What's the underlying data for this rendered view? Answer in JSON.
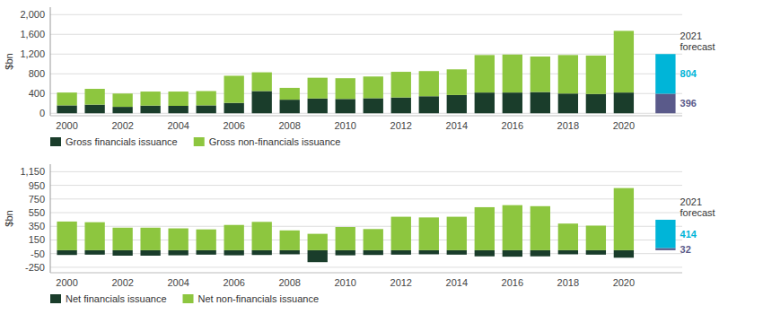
{
  "chart_data": [
    {
      "type": "bar",
      "stacked": true,
      "grid": true,
      "legend": "bottom",
      "ylabel": "$bn",
      "categories": [
        "2000",
        null,
        "2002",
        null,
        "2004",
        null,
        "2006",
        null,
        "2008",
        null,
        "2010",
        null,
        "2012",
        null,
        "2014",
        null,
        "2016",
        null,
        "2018",
        null,
        "2020",
        null
      ],
      "series": [
        {
          "name": "Gross financials issuance",
          "color": "#1a3d2b",
          "values": [
            160,
            175,
            130,
            155,
            150,
            160,
            210,
            450,
            275,
            300,
            290,
            305,
            320,
            345,
            370,
            420,
            420,
            430,
            400,
            390,
            420,
            null
          ]
        },
        {
          "name": "Gross non-financials issuance",
          "color": "#8dc63f",
          "values": [
            260,
            320,
            270,
            285,
            290,
            290,
            550,
            380,
            240,
            420,
            420,
            440,
            520,
            510,
            520,
            760,
            770,
            720,
            780,
            780,
            1250,
            null
          ]
        },
        {
          "color": "#5a5a8a",
          "data_labels": true,
          "values": [
            null,
            null,
            null,
            null,
            null,
            null,
            null,
            null,
            null,
            null,
            null,
            null,
            null,
            null,
            null,
            null,
            null,
            null,
            null,
            null,
            null,
            396
          ]
        },
        {
          "color": "#00b5d8",
          "data_labels": true,
          "values": [
            null,
            null,
            null,
            null,
            null,
            null,
            null,
            null,
            null,
            null,
            null,
            null,
            null,
            null,
            null,
            null,
            null,
            null,
            null,
            null,
            null,
            804
          ]
        }
      ],
      "ylim": [
        -50,
        2150
      ],
      "yticks": [
        0,
        400,
        800,
        {
          "value": 1200,
          "label": "1,200"
        },
        {
          "value": 1600,
          "label": "1,600"
        },
        {
          "value": 2000,
          "label": "2,000"
        }
      ],
      "annotations": [
        "2021",
        "forecast"
      ]
    },
    {
      "type": "bar",
      "stacked": true,
      "grid": true,
      "legend": "bottom",
      "ylabel": "$bn",
      "categories": [
        "2000",
        null,
        "2002",
        null,
        "2004",
        null,
        "2006",
        null,
        "2008",
        null,
        "2010",
        null,
        "2012",
        null,
        "2014",
        null,
        "2016",
        null,
        "2018",
        null,
        "2020",
        null
      ],
      "series": [
        {
          "name": "Net financials issuance",
          "color": "#1a3d2b",
          "values": [
            -70,
            -65,
            -80,
            -80,
            -75,
            -65,
            -75,
            -70,
            -60,
            -175,
            -75,
            -70,
            -65,
            -60,
            -65,
            -90,
            -95,
            -90,
            -60,
            -65,
            -110,
            null
          ]
        },
        {
          "name": "Net non-financials issuance",
          "color": "#8dc63f",
          "values": [
            420,
            410,
            330,
            330,
            320,
            305,
            370,
            415,
            290,
            240,
            340,
            310,
            490,
            480,
            490,
            630,
            660,
            645,
            390,
            360,
            910,
            null
          ]
        },
        {
          "color": "#5a5a8a",
          "data_labels": true,
          "values": [
            null,
            null,
            null,
            null,
            null,
            null,
            null,
            null,
            null,
            null,
            null,
            null,
            null,
            null,
            null,
            null,
            null,
            null,
            null,
            null,
            null,
            32
          ]
        },
        {
          "color": "#00b5d8",
          "data_labels": true,
          "values": [
            null,
            null,
            null,
            null,
            null,
            null,
            null,
            null,
            null,
            null,
            null,
            null,
            null,
            null,
            null,
            null,
            null,
            null,
            null,
            null,
            null,
            414
          ]
        }
      ],
      "ylim": [
        -330,
        1260
      ],
      "yticks": [
        -250,
        -50,
        150,
        350,
        550,
        750,
        950,
        {
          "value": 1150,
          "label": "1,150"
        }
      ],
      "annotations": [
        "2021",
        "forecast"
      ]
    }
  ]
}
